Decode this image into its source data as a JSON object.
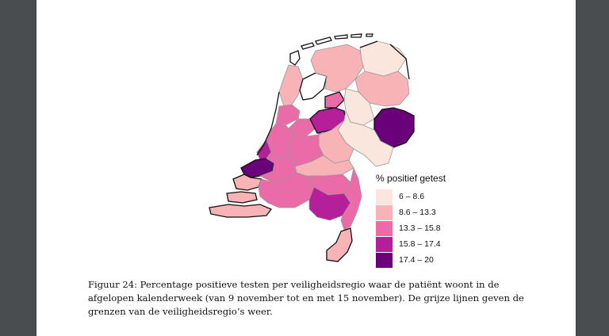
{
  "legend": {
    "title": "% positief getest",
    "items": [
      {
        "label": "6 – 8.6",
        "color": "#fbe6de"
      },
      {
        "label": "8.6 – 13.3",
        "color": "#f7b3b6"
      },
      {
        "label": "13.3 – 15.8",
        "color": "#ea6ba8"
      },
      {
        "label": "15.8 – 17.4",
        "color": "#b5209a"
      },
      {
        "label": "17.4 – 20",
        "color": "#6a017a"
      }
    ]
  },
  "caption": {
    "line1": "Figuur 24: Percentage positieve testen per veiligheidsregio waar de patiënt woont in de",
    "line2": "afgelopen kalenderweek (van 9 november tot en met 15 november). De grijze lijnen geven de",
    "line3": "grenzen van de veiligheidsregio’s weer."
  },
  "chart_data": {
    "type": "choropleth",
    "legend_title": "% positief getest",
    "classes": [
      {
        "range": [
          6,
          8.6
        ],
        "label": "6 – 8.6",
        "color": "#fbe6de"
      },
      {
        "range": [
          8.6,
          13.3
        ],
        "label": "8.6 – 13.3",
        "color": "#f7b3b6"
      },
      {
        "range": [
          13.3,
          15.8
        ],
        "label": "13.3 – 15.8",
        "color": "#ea6ba8"
      },
      {
        "range": [
          15.8,
          17.4
        ],
        "label": "15.8 – 17.4",
        "color": "#b5209a"
      },
      {
        "range": [
          17.4,
          20
        ],
        "label": "17.4 – 20",
        "color": "#6a017a"
      }
    ],
    "legend_position": "right"
  }
}
